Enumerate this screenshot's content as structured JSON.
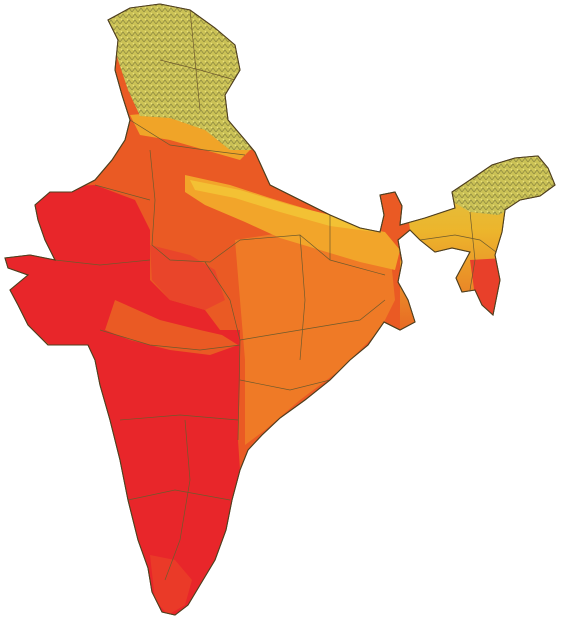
{
  "map": {
    "region": "India",
    "labels_visible": false,
    "legend_visible": false,
    "palette": {
      "zone_highest": "#e8262a",
      "zone_high": "#ea5a24",
      "zone_medium": "#f08a22",
      "zone_moderate": "#f2b22a",
      "zone_low": "#e7c93a",
      "himalaya_terrain": "#c9bf54",
      "terrain_relief": "#9c9a48",
      "boundary_line": "#6e5a2c",
      "background": "#ffffff"
    }
  }
}
